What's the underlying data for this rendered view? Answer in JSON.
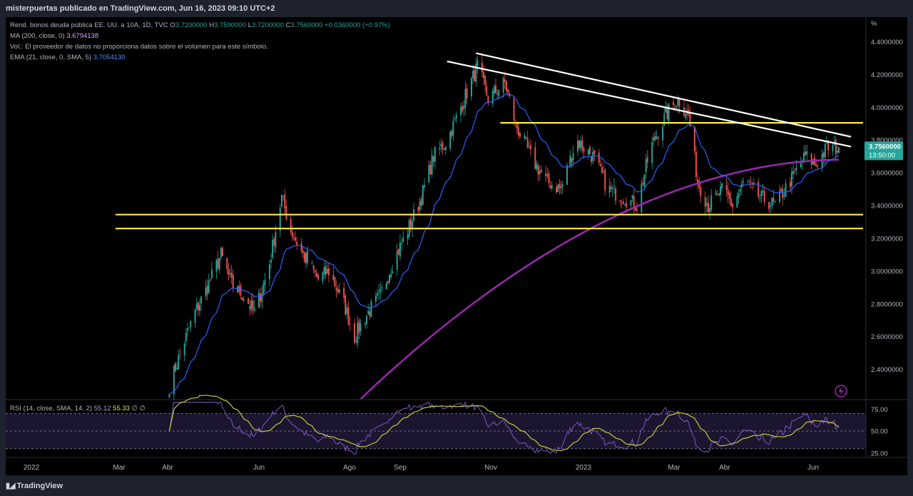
{
  "header": {
    "caption": "misterpuertas publicado en TradingView.com, Jun 16, 2023 09:10 UTC+2"
  },
  "legend": {
    "symbol": "Rend. bonos deuda pública EE. UU. a 10A, 1D, TVC",
    "open_label": "O",
    "open": "3.7200000",
    "high_label": "H",
    "high": "3.7590000",
    "low_label": "L",
    "low": "3.7200000",
    "close_label": "C",
    "close": "3.7560000",
    "change": "+0.0360000 (+0.97%)",
    "ma_label": "MA (200, close, 0)",
    "ma_value": "3.6794138",
    "volume_note": "Vol.: El proveedor de datos no proporciona datos sobre el volumen para este símbolo.",
    "ema_label": "EMA (21, close, 0, SMA, 5)",
    "ema_value": "3.7054130"
  },
  "price_tag": {
    "value": "3.7560000",
    "countdown": "13:50:00"
  },
  "rsi_legend": {
    "label": "RSI (14, close, SMA, 14, 2)",
    "rsi": "55.12",
    "sma": "55.33",
    "extra": "∅ ∅"
  },
  "footer": {
    "brand": "TradingView"
  },
  "colors": {
    "bg": "#000000",
    "frame": "#1e222d",
    "up": "#26a69a",
    "down": "#ef5350",
    "ema": "#2962ff",
    "ma": "#9c27b0",
    "support": "#ffeb3b",
    "trend": "#ffffff",
    "rsi": "#7e57c2",
    "rsi_ma": "#c3c83c"
  },
  "chart_data": [
    {
      "type": "candlestick",
      "title": "Rend. bonos deuda pública EE. UU. a 10A, 1D, TVC",
      "y_unit": "%",
      "ylim": [
        2.22,
        4.55
      ],
      "y_ticks": [
        "2.4000000",
        "2.6000000",
        "2.8000000",
        "3.0000000",
        "3.2000000",
        "3.4000000",
        "3.6000000",
        "3.8000000",
        "4.0000000",
        "4.2000000",
        "4.4000000"
      ],
      "x_ticks": [
        "2022",
        "Mar",
        "Abr",
        "Jun",
        "Ago",
        "Sep",
        "Nov",
        "2023",
        "Mar",
        "Abr",
        "Jun"
      ],
      "close_path": [
        [
          "2022-04-01",
          2.3
        ],
        [
          "2022-04-10",
          2.55
        ],
        [
          "2022-04-18",
          2.75
        ],
        [
          "2022-04-25",
          2.88
        ],
        [
          "2022-05-05",
          3.1
        ],
        [
          "2022-05-12",
          2.92
        ],
        [
          "2022-05-20",
          2.85
        ],
        [
          "2022-05-27",
          2.75
        ],
        [
          "2022-06-05",
          3.0
        ],
        [
          "2022-06-14",
          3.45
        ],
        [
          "2022-06-20",
          3.25
        ],
        [
          "2022-06-28",
          3.1
        ],
        [
          "2022-07-08",
          2.95
        ],
        [
          "2022-07-15",
          3.0
        ],
        [
          "2022-07-25",
          2.8
        ],
        [
          "2022-08-01",
          2.6
        ],
        [
          "2022-08-10",
          2.75
        ],
        [
          "2022-08-18",
          2.85
        ],
        [
          "2022-08-26",
          3.05
        ],
        [
          "2022-09-05",
          3.25
        ],
        [
          "2022-09-14",
          3.45
        ],
        [
          "2022-09-22",
          3.7
        ],
        [
          "2022-10-01",
          3.8
        ],
        [
          "2022-10-10",
          4.0
        ],
        [
          "2022-10-21",
          4.25
        ],
        [
          "2022-10-28",
          4.05
        ],
        [
          "2022-11-08",
          4.15
        ],
        [
          "2022-11-15",
          3.9
        ],
        [
          "2022-11-25",
          3.7
        ],
        [
          "2022-12-05",
          3.55
        ],
        [
          "2022-12-15",
          3.5
        ],
        [
          "2022-12-25",
          3.8
        ],
        [
          "2023-01-05",
          3.7
        ],
        [
          "2023-01-15",
          3.5
        ],
        [
          "2023-01-25",
          3.45
        ],
        [
          "2023-02-03",
          3.4
        ],
        [
          "2023-02-12",
          3.75
        ],
        [
          "2023-02-22",
          3.95
        ],
        [
          "2023-03-02",
          4.05
        ],
        [
          "2023-03-09",
          3.95
        ],
        [
          "2023-03-15",
          3.55
        ],
        [
          "2023-03-22",
          3.4
        ],
        [
          "2023-04-01",
          3.5
        ],
        [
          "2023-04-07",
          3.4
        ],
        [
          "2023-04-15",
          3.55
        ],
        [
          "2023-04-25",
          3.45
        ],
        [
          "2023-05-05",
          3.4
        ],
        [
          "2023-05-15",
          3.55
        ],
        [
          "2023-05-25",
          3.7
        ],
        [
          "2023-06-01",
          3.65
        ],
        [
          "2023-06-08",
          3.75
        ],
        [
          "2023-06-16",
          3.756
        ]
      ],
      "ema21_last": 3.705413,
      "ma200_last": 3.6794138,
      "ma200_start": [
        "2022-08-05",
        2.22
      ],
      "support_levels": [
        3.905,
        3.345,
        3.26
      ],
      "trend_lines": [
        [
          [
            "2022-10-20",
            4.33
          ],
          [
            "2023-06-24",
            3.82
          ]
        ],
        [
          [
            "2022-10-01",
            4.28
          ],
          [
            "2023-06-24",
            3.76
          ]
        ]
      ]
    },
    {
      "type": "line",
      "title": "RSI (14, close, SMA, 14, 2)",
      "ylim": [
        20,
        85
      ],
      "y_ticks": [
        "25.00",
        "50.00",
        "75.00"
      ],
      "bands": [
        30,
        50,
        70
      ],
      "rsi_last": 55.12,
      "rsi_ma_last": 55.33
    }
  ]
}
